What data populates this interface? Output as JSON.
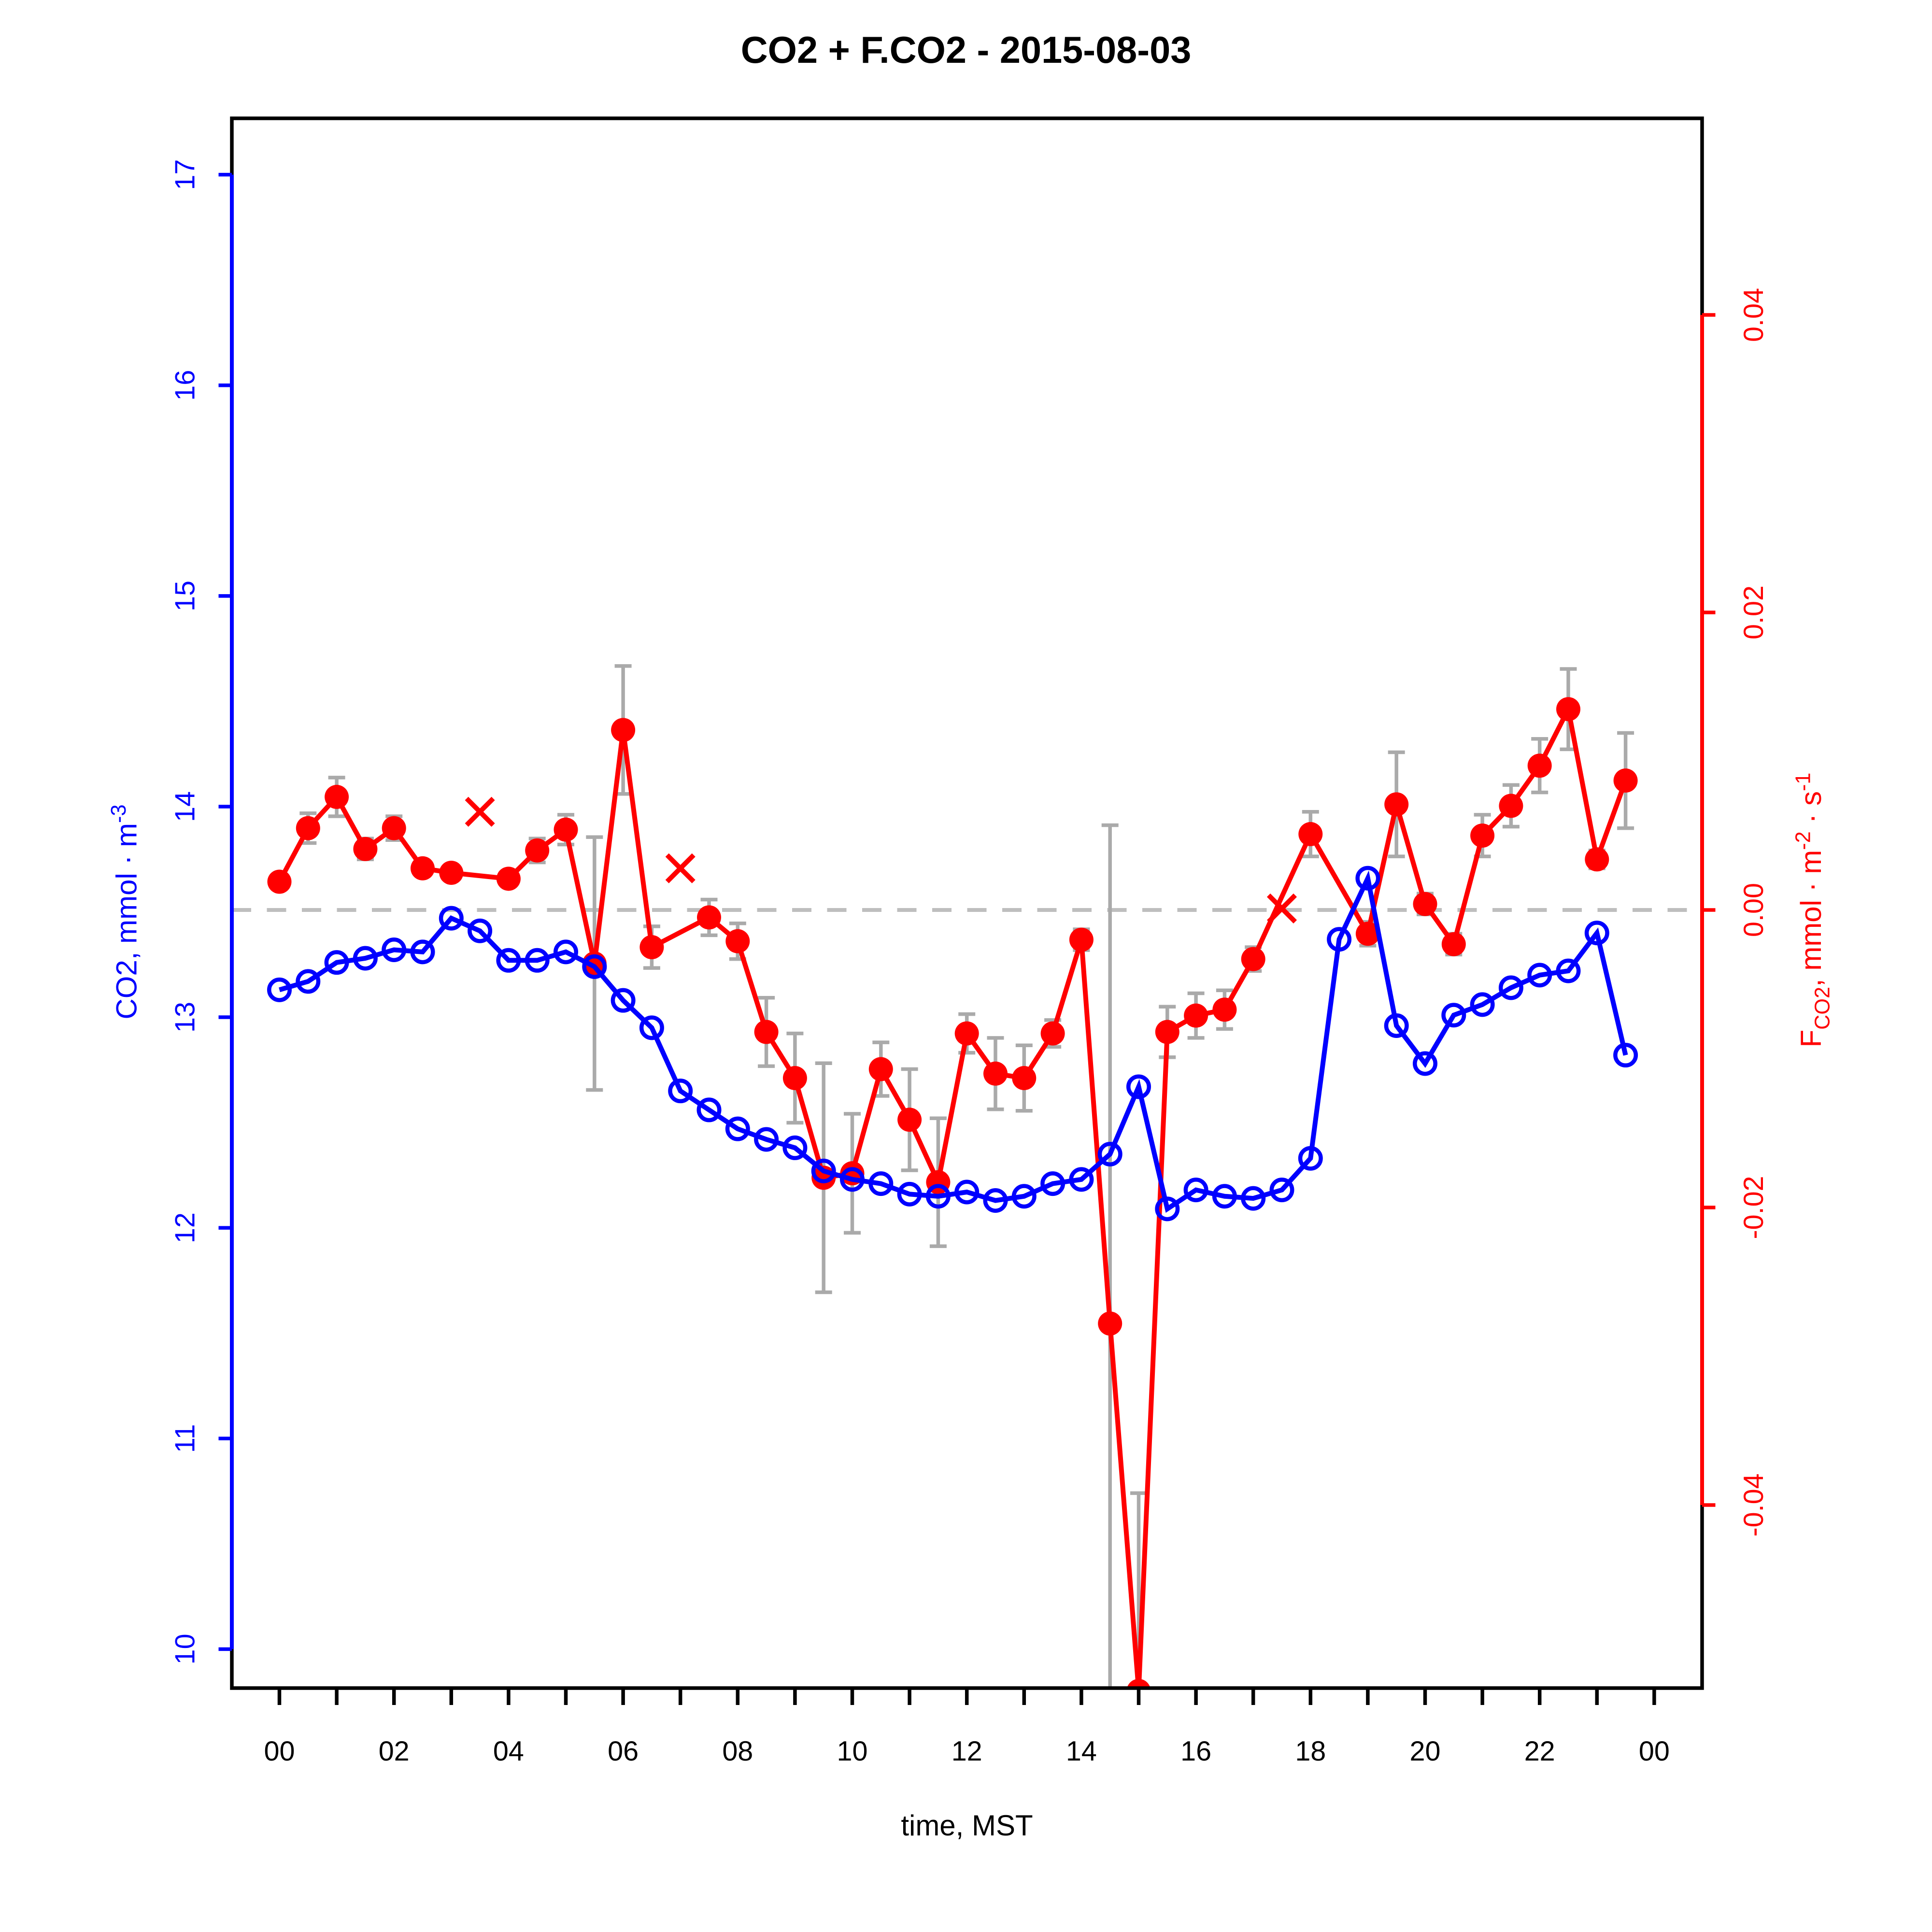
{
  "title": "CO2 + F.CO2 -  2015-08-03",
  "chart_data": {
    "type": "line",
    "title": "CO2 + F.CO2 -  2015-08-03",
    "xlabel": "time, MST",
    "x_axis": {
      "minor_tick_hours": [
        0,
        1,
        2,
        3,
        4,
        5,
        6,
        7,
        8,
        9,
        10,
        11,
        12,
        13,
        14,
        15,
        16,
        17,
        18,
        19,
        20,
        21,
        22,
        23,
        24
      ],
      "label_hours": [
        0,
        2,
        4,
        6,
        8,
        10,
        12,
        14,
        16,
        18,
        20,
        22,
        24
      ],
      "labels": [
        "00",
        "02",
        "04",
        "06",
        "08",
        "10",
        "12",
        "14",
        "16",
        "18",
        "20",
        "22",
        "00"
      ],
      "color": "#000000"
    },
    "left_axis": {
      "color": "#0000ff",
      "ticks": [
        10,
        11,
        12,
        13,
        14,
        15,
        16,
        17
      ],
      "tick_labels": [
        "10",
        "11",
        "12",
        "13",
        "14",
        "15",
        "16",
        "17"
      ],
      "range": [
        9.82,
        17.27
      ],
      "label_segments": [
        {
          "text": "CO2, mmol "
        },
        {
          "text": "·"
        },
        {
          "text": " m"
        },
        {
          "text": "-3",
          "style": "sup"
        }
      ]
    },
    "right_axis": {
      "color": "#ff0000",
      "tick_values": [
        -0.04,
        -0.02,
        0.0,
        0.02,
        0.04
      ],
      "tick_labels": [
        "-0.04",
        "-0.02",
        "0.00",
        "0.02",
        "0.04"
      ],
      "range": [
        -0.0523,
        0.0532
      ],
      "label_segments": [
        {
          "text": "F"
        },
        {
          "text": "CO2",
          "style": "sub"
        },
        {
          "text": ", mmol "
        },
        {
          "text": "·"
        },
        {
          "text": " m"
        },
        {
          "text": "-2",
          "style": "sup"
        },
        {
          "text": " "
        },
        {
          "text": "·"
        },
        {
          "text": " s"
        },
        {
          "text": "-1",
          "style": "sup"
        }
      ]
    },
    "zero_line": {
      "value": 0.0,
      "style": "dashed",
      "color": "#bebebe"
    },
    "error_bar_color": "#aaaaaa",
    "series": [
      {
        "name": "co2-concentration",
        "axis": "left",
        "marker": "open-circle",
        "color": "#0000ff",
        "t": [
          0,
          0.5,
          1,
          1.5,
          2,
          2.5,
          3,
          3.5,
          4,
          4.5,
          5,
          5.5,
          6,
          6.5,
          7,
          7.5,
          8,
          8.5,
          9,
          9.5,
          10,
          10.5,
          11,
          11.5,
          12,
          12.5,
          13,
          13.5,
          14,
          14.5,
          15,
          15.5,
          16,
          16.5,
          17,
          17.5,
          18,
          18.5,
          19,
          19.5,
          20,
          20.5,
          21,
          21.5,
          22,
          22.5,
          23,
          23.5
        ],
        "values": [
          13.13,
          13.17,
          13.26,
          13.28,
          13.32,
          13.31,
          13.47,
          13.41,
          13.27,
          13.27,
          13.31,
          13.24,
          13.08,
          12.95,
          12.65,
          12.56,
          12.47,
          12.42,
          12.38,
          12.27,
          12.23,
          12.21,
          12.16,
          12.15,
          12.17,
          12.13,
          12.15,
          12.21,
          12.23,
          12.35,
          12.67,
          12.09,
          12.18,
          12.15,
          12.14,
          12.18,
          12.33,
          13.37,
          13.66,
          12.96,
          12.78,
          13.01,
          13.06,
          13.14,
          13.2,
          13.22,
          13.4,
          12.82
        ]
      },
      {
        "name": "co2-flux",
        "axis": "right",
        "marker": "filled-circle",
        "color": "#ff0000",
        "points": [
          {
            "t": 0,
            "f": 0.0019,
            "err": 0.0004
          },
          {
            "t": 0.5,
            "f": 0.0055,
            "err": 0.001
          },
          {
            "t": 1,
            "f": 0.0076,
            "err": 0.0013
          },
          {
            "t": 1.5,
            "f": 0.0041,
            "err": 0.0007
          },
          {
            "t": 2,
            "f": 0.0055,
            "err": 0.0008
          },
          {
            "t": 2.5,
            "f": 0.0028,
            "err": 0.0004
          },
          {
            "t": 3,
            "f": 0.0025,
            "err": 0.0004
          },
          {
            "t": 4,
            "f": 0.0021,
            "err": 0.0004
          },
          {
            "t": 4.5,
            "f": 0.004,
            "err": 0.0008
          },
          {
            "t": 5,
            "f": 0.0054,
            "err": 0.001
          },
          {
            "t": 5.5,
            "f": -0.0036,
            "err": 0.0085
          },
          {
            "t": 6,
            "f": 0.0121,
            "err": 0.0043
          },
          {
            "t": 6.5,
            "f": -0.0025,
            "err": 0.0014
          },
          {
            "t": 7.5,
            "f": -0.0005,
            "err": 0.0012
          },
          {
            "t": 8,
            "f": -0.0021,
            "err": 0.0012
          },
          {
            "t": 8.5,
            "f": -0.0082,
            "err": 0.0023
          },
          {
            "t": 9,
            "f": -0.0113,
            "err": 0.003
          },
          {
            "t": 9.5,
            "f": -0.018,
            "err": 0.0077
          },
          {
            "t": 10,
            "f": -0.0177,
            "err": 0.004
          },
          {
            "t": 10.5,
            "f": -0.0107,
            "err": 0.0018
          },
          {
            "t": 11,
            "f": -0.0141,
            "err": 0.0034
          },
          {
            "t": 11.5,
            "f": -0.0183,
            "err": 0.0043
          },
          {
            "t": 12,
            "f": -0.0083,
            "err": 0.0013
          },
          {
            "t": 12.5,
            "f": -0.011,
            "err": 0.0024
          },
          {
            "t": 13,
            "f": -0.0113,
            "err": 0.0022
          },
          {
            "t": 13.5,
            "f": -0.0083,
            "err": 0.0009
          },
          {
            "t": 14,
            "f": -0.002,
            "err": 0.0007
          },
          {
            "t": 14.5,
            "f": -0.0278,
            "err": 0.0335
          },
          {
            "t": 15,
            "f": -0.0525,
            "err": 0.0133,
            "clipped": true
          },
          {
            "t": 15.5,
            "f": -0.0082,
            "err": 0.0017
          },
          {
            "t": 16,
            "f": -0.0071,
            "err": 0.0015
          },
          {
            "t": 16.5,
            "f": -0.0067,
            "err": 0.0013
          },
          {
            "t": 17,
            "f": -0.0033,
            "err": 0.0008
          },
          {
            "t": 18,
            "f": 0.0051,
            "err": 0.0015
          },
          {
            "t": 19,
            "f": -0.0016,
            "err": 0.0008
          },
          {
            "t": 19.5,
            "f": 0.0071,
            "err": 0.0035
          },
          {
            "t": 20,
            "f": 0.0004,
            "err": 0.0007
          },
          {
            "t": 20.5,
            "f": -0.0023,
            "err": 0.0007
          },
          {
            "t": 21,
            "f": 0.005,
            "err": 0.0014
          },
          {
            "t": 21.5,
            "f": 0.007,
            "err": 0.0014
          },
          {
            "t": 22,
            "f": 0.0097,
            "err": 0.0018
          },
          {
            "t": 22.5,
            "f": 0.0135,
            "err": 0.0027
          },
          {
            "t": 23,
            "f": 0.0034,
            "err": 0.0006
          },
          {
            "t": 23.5,
            "f": 0.0087,
            "err": 0.0032
          }
        ]
      },
      {
        "name": "flagged-flux",
        "axis": "right",
        "marker": "x",
        "color": "#ff0000",
        "points": [
          {
            "t": 3.5,
            "f": 0.0066
          },
          {
            "t": 7,
            "f": 0.0028
          },
          {
            "t": 17.5,
            "f": 0.0001
          }
        ]
      }
    ]
  }
}
